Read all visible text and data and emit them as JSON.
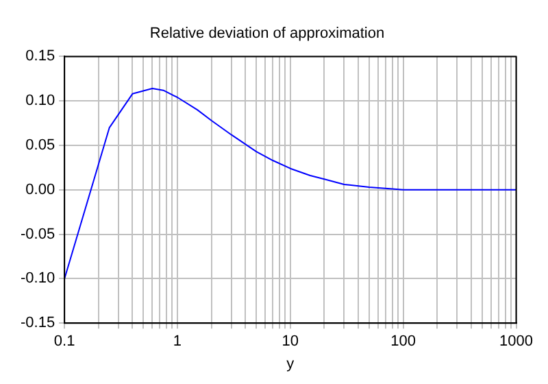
{
  "chart_data": {
    "type": "line",
    "title": "Relative deviation of approximation",
    "xlabel": "y",
    "log": "x",
    "grid": true,
    "marker": "none",
    "line_style": "solid",
    "x": [
      0.1,
      0.25,
      0.4,
      0.6,
      0.75,
      1,
      1.5,
      2,
      3,
      5,
      7,
      10,
      15,
      20,
      30,
      50,
      80,
      100,
      1000
    ],
    "series": [
      {
        "color": "#0000ff",
        "values": [
          -0.1,
          0.07,
          0.108,
          0.114,
          0.112,
          0.104,
          0.09,
          0.078,
          0.062,
          0.043,
          0.033,
          0.024,
          0.016,
          0.012,
          0.006,
          0.003,
          0.001,
          0,
          0
        ]
      }
    ],
    "xlim": [
      0.1,
      1000
    ],
    "xticks": [
      0.1,
      {
        "value": 0.2,
        "label": null
      },
      {
        "value": 0.3,
        "label": null
      },
      {
        "value": 0.4,
        "label": null
      },
      {
        "value": 0.5,
        "label": null
      },
      {
        "value": 0.6,
        "label": null
      },
      {
        "value": 0.7,
        "label": null
      },
      {
        "value": 0.8,
        "label": null
      },
      {
        "value": 0.9,
        "label": null
      },
      1,
      {
        "value": 2,
        "label": null
      },
      {
        "value": 3,
        "label": null
      },
      {
        "value": 4,
        "label": null
      },
      {
        "value": 5,
        "label": null
      },
      {
        "value": 6,
        "label": null
      },
      {
        "value": 7,
        "label": null
      },
      {
        "value": 8,
        "label": null
      },
      {
        "value": 9,
        "label": null
      },
      10,
      {
        "value": 20,
        "label": null
      },
      {
        "value": 30,
        "label": null
      },
      {
        "value": 40,
        "label": null
      },
      {
        "value": 50,
        "label": null
      },
      {
        "value": 60,
        "label": null
      },
      {
        "value": 70,
        "label": null
      },
      {
        "value": 80,
        "label": null
      },
      {
        "value": 90,
        "label": null
      },
      100,
      {
        "value": 200,
        "label": null
      },
      {
        "value": 300,
        "label": null
      },
      {
        "value": 400,
        "label": null
      },
      {
        "value": 500,
        "label": null
      },
      {
        "value": 600,
        "label": null
      },
      {
        "value": 700,
        "label": null
      },
      {
        "value": 800,
        "label": null
      },
      {
        "value": 900,
        "label": null
      },
      1000
    ],
    "ylim": [
      -0.15,
      0.15
    ],
    "yticks": [
      {
        "value": -0.15,
        "label": "-0.15"
      },
      {
        "value": -0.1,
        "label": "-0.10"
      },
      {
        "value": -0.05,
        "label": "-0.05"
      },
      {
        "value": 0,
        "label": "0.00"
      },
      {
        "value": 0.05,
        "label": "0.05"
      },
      {
        "value": 0.1,
        "label": "0.10"
      },
      {
        "value": 0.15,
        "label": "0.15"
      }
    ]
  }
}
